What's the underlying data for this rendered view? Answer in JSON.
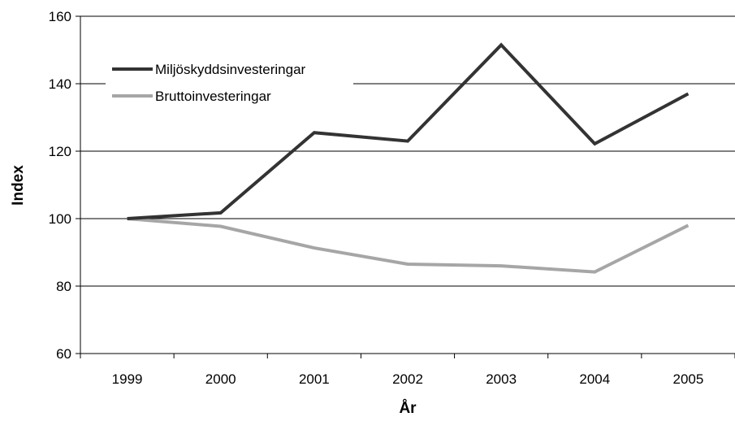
{
  "chart_data": {
    "type": "line",
    "title": "",
    "xlabel": "År",
    "ylabel": "Index",
    "categories": [
      "1999",
      "2000",
      "2001",
      "2002",
      "2003",
      "2004",
      "2005"
    ],
    "ylim": [
      60,
      160
    ],
    "yticks": [
      60,
      80,
      100,
      120,
      140,
      160
    ],
    "grid": true,
    "legend_position": "top-left",
    "series": [
      {
        "name": "Miljöskyddsinvesteringar",
        "color": "#333333",
        "values": [
          100,
          101.7,
          125.5,
          123,
          151.5,
          122.2,
          137
        ]
      },
      {
        "name": "Bruttoinvesteringar",
        "color": "#a6a6a6",
        "values": [
          100,
          97.7,
          91.3,
          86.5,
          86,
          84.2,
          98
        ]
      }
    ]
  }
}
